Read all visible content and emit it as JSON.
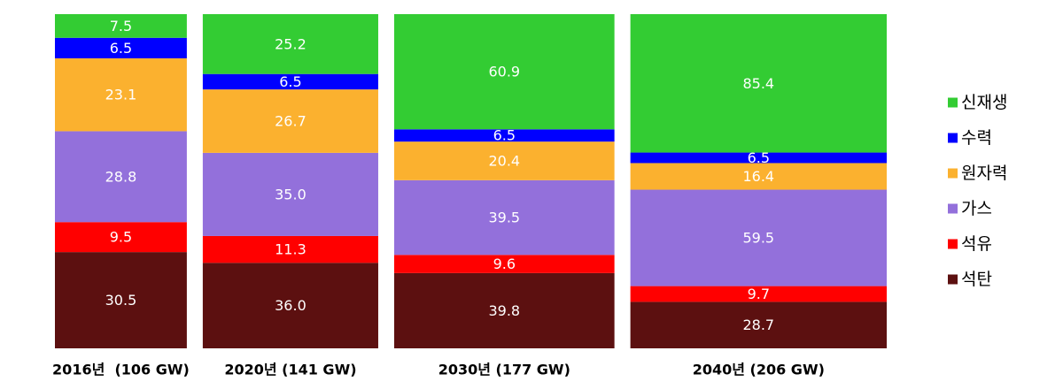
{
  "chart_data": {
    "type": "bar",
    "stacked": true,
    "normalized": true,
    "width_proportional_to_total": true,
    "categories": [
      "2016년  (106 GW)",
      "2020년 (141 GW)",
      "2030년 (177 GW)",
      "2040년 (206 GW)"
    ],
    "totals": [
      106,
      141,
      177,
      206
    ],
    "series": [
      {
        "name": "석탄",
        "color": "#5C1010",
        "values": [
          30.5,
          36.0,
          39.8,
          28.7
        ],
        "labels": [
          "30.5",
          "36.0",
          "39.8",
          "28.7"
        ]
      },
      {
        "name": "석유",
        "color": "#FF0000",
        "values": [
          9.5,
          11.3,
          9.6,
          9.7
        ],
        "labels": [
          "9.5",
          "11.3",
          "9.6",
          "9.7"
        ]
      },
      {
        "name": "가스",
        "color": "#9370DB",
        "values": [
          28.8,
          35.0,
          39.5,
          59.5
        ],
        "labels": [
          "28.8",
          "35.0",
          "39.5",
          "59.5"
        ]
      },
      {
        "name": "원자력",
        "color": "#FBB12F",
        "values": [
          23.1,
          26.7,
          20.4,
          16.4
        ],
        "labels": [
          "23.1",
          "26.7",
          "20.4",
          "16.4"
        ]
      },
      {
        "name": "수력",
        "color": "#0000FF",
        "values": [
          6.5,
          6.5,
          6.5,
          6.5
        ],
        "labels": [
          "6.5",
          "6.5",
          "6.5",
          "6.5"
        ]
      },
      {
        "name": "신재생",
        "color": "#33CC33",
        "values": [
          7.5,
          25.2,
          60.9,
          85.4
        ],
        "labels": [
          "7.5",
          "25.2",
          "60.9",
          "85.4"
        ]
      }
    ],
    "legend": {
      "position": "right",
      "order": [
        "신재생",
        "수력",
        "원자력",
        "가스",
        "석유",
        "석탄"
      ]
    },
    "grid": false
  }
}
